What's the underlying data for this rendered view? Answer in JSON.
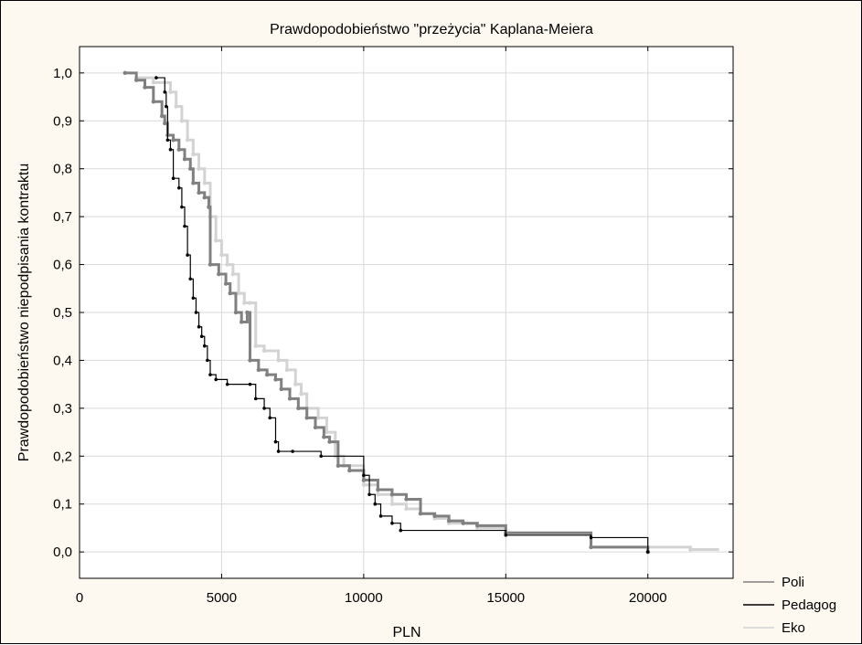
{
  "chart_data": {
    "type": "line",
    "title": "Prawdopodobieństwo \"przeżycia\" Kaplana-Meiera",
    "xlabel": "PLN",
    "ylabel": "Prawdopodobieństwo niepodpisania kontraktu",
    "xlim": [
      0,
      23000
    ],
    "ylim": [
      -0.055,
      1.055
    ],
    "xticks": [
      0,
      5000,
      10000,
      15000,
      20000
    ],
    "xtick_labels": [
      "0",
      "5000",
      "10000",
      "15000",
      "20000"
    ],
    "yticks": [
      0.0,
      0.1,
      0.2,
      0.3,
      0.4,
      0.5,
      0.6,
      0.7,
      0.8,
      0.9,
      1.0
    ],
    "ytick_labels": [
      "0,0",
      "0,1",
      "0,2",
      "0,3",
      "0,4",
      "0,5",
      "0,6",
      "0,7",
      "0,8",
      "0,9",
      "1,0"
    ],
    "grid": true,
    "legend_position": "bottom-right-outside",
    "series": [
      {
        "name": "Poli",
        "color": "#808080",
        "steps": [
          [
            1600,
            1.0
          ],
          [
            2000,
            0.985
          ],
          [
            2300,
            0.97
          ],
          [
            2600,
            0.94
          ],
          [
            2900,
            0.91
          ],
          [
            3000,
            0.895
          ],
          [
            3100,
            0.87
          ],
          [
            3300,
            0.86
          ],
          [
            3500,
            0.84
          ],
          [
            3700,
            0.82
          ],
          [
            3900,
            0.8
          ],
          [
            4000,
            0.77
          ],
          [
            4200,
            0.75
          ],
          [
            4400,
            0.74
          ],
          [
            4550,
            0.72
          ],
          [
            4600,
            0.6
          ],
          [
            4900,
            0.58
          ],
          [
            5150,
            0.56
          ],
          [
            5300,
            0.54
          ],
          [
            5500,
            0.5
          ],
          [
            5700,
            0.48
          ],
          [
            5900,
            0.5
          ],
          [
            6000,
            0.4
          ],
          [
            6300,
            0.38
          ],
          [
            6600,
            0.37
          ],
          [
            6900,
            0.36
          ],
          [
            7100,
            0.34
          ],
          [
            7400,
            0.32
          ],
          [
            7700,
            0.3
          ],
          [
            8000,
            0.28
          ],
          [
            8300,
            0.26
          ],
          [
            8600,
            0.24
          ],
          [
            8800,
            0.23
          ],
          [
            9100,
            0.18
          ],
          [
            9500,
            0.17
          ],
          [
            10000,
            0.15
          ],
          [
            10500,
            0.13
          ],
          [
            11000,
            0.12
          ],
          [
            11500,
            0.11
          ],
          [
            12000,
            0.08
          ],
          [
            12500,
            0.075
          ],
          [
            13000,
            0.065
          ],
          [
            13500,
            0.06
          ],
          [
            14000,
            0.055
          ],
          [
            15000,
            0.04
          ],
          [
            18000,
            0.01
          ],
          [
            20000,
            0.0
          ]
        ],
        "end_x": 20000
      },
      {
        "name": "Pedagog",
        "color": "#000000",
        "steps": [
          [
            2700,
            0.99
          ],
          [
            3000,
            0.96
          ],
          [
            3050,
            0.93
          ],
          [
            3100,
            0.86
          ],
          [
            3200,
            0.84
          ],
          [
            3300,
            0.78
          ],
          [
            3500,
            0.76
          ],
          [
            3600,
            0.72
          ],
          [
            3700,
            0.68
          ],
          [
            3800,
            0.62
          ],
          [
            3900,
            0.57
          ],
          [
            4000,
            0.53
          ],
          [
            4100,
            0.5
          ],
          [
            4200,
            0.47
          ],
          [
            4300,
            0.45
          ],
          [
            4400,
            0.43
          ],
          [
            4500,
            0.4
          ],
          [
            4600,
            0.37
          ],
          [
            4800,
            0.36
          ],
          [
            5200,
            0.35
          ],
          [
            6000,
            0.35
          ],
          [
            6200,
            0.32
          ],
          [
            6500,
            0.3
          ],
          [
            6700,
            0.28
          ],
          [
            6900,
            0.23
          ],
          [
            7000,
            0.21
          ],
          [
            7500,
            0.21
          ],
          [
            8500,
            0.2
          ],
          [
            10000,
            0.16
          ],
          [
            10200,
            0.12
          ],
          [
            10400,
            0.1
          ],
          [
            10600,
            0.075
          ],
          [
            11000,
            0.06
          ],
          [
            11300,
            0.045
          ],
          [
            15000,
            0.035
          ],
          [
            18000,
            0.03
          ],
          [
            20000,
            0.0
          ]
        ],
        "end_x": 20000
      },
      {
        "name": "Eko",
        "color": "#d3d3d3",
        "steps": [
          [
            2000,
            0.99
          ],
          [
            2600,
            0.98
          ],
          [
            3200,
            0.96
          ],
          [
            3400,
            0.93
          ],
          [
            3600,
            0.9
          ],
          [
            3800,
            0.86
          ],
          [
            4000,
            0.83
          ],
          [
            4200,
            0.8
          ],
          [
            4400,
            0.77
          ],
          [
            4600,
            0.7
          ],
          [
            4800,
            0.65
          ],
          [
            5000,
            0.62
          ],
          [
            5200,
            0.6
          ],
          [
            5400,
            0.58
          ],
          [
            5600,
            0.54
          ],
          [
            5800,
            0.52
          ],
          [
            6000,
            0.52
          ],
          [
            6200,
            0.43
          ],
          [
            6500,
            0.42
          ],
          [
            7000,
            0.4
          ],
          [
            7300,
            0.38
          ],
          [
            7600,
            0.35
          ],
          [
            7800,
            0.33
          ],
          [
            8000,
            0.3
          ],
          [
            8400,
            0.28
          ],
          [
            8700,
            0.25
          ],
          [
            9000,
            0.2
          ],
          [
            9300,
            0.18
          ],
          [
            10000,
            0.14
          ],
          [
            10500,
            0.12
          ],
          [
            11000,
            0.1
          ],
          [
            11500,
            0.09
          ],
          [
            12000,
            0.08
          ],
          [
            12500,
            0.07
          ],
          [
            13000,
            0.06
          ],
          [
            14000,
            0.05
          ],
          [
            15000,
            0.04
          ],
          [
            18000,
            0.01
          ],
          [
            21500,
            0.005
          ]
        ],
        "end_x": 22500
      }
    ]
  }
}
